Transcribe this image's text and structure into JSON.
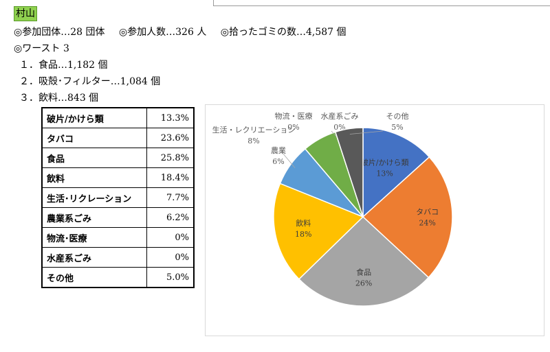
{
  "region": "村山",
  "summary": {
    "groups": "◎参加団体…28 団体",
    "participants": "◎参加人数…326 人",
    "trash": "◎拾ったゴミの数…4,587 個"
  },
  "worst_heading": "◎ワースト 3",
  "worst": [
    {
      "label": "１．食品…1,182 個"
    },
    {
      "label": "２．吸殻･フィルター…1,084 個"
    },
    {
      "label": "３．飲料…843 個"
    }
  ],
  "table": [
    {
      "category": "破片/かけら類",
      "percent": "13.3%"
    },
    {
      "category": "タバコ",
      "percent": "23.6%"
    },
    {
      "category": "食品",
      "percent": "25.8%"
    },
    {
      "category": "飲料",
      "percent": "18.4%"
    },
    {
      "category": "生活･リクレーション",
      "percent": "7.7%"
    },
    {
      "category": "農業系ごみ",
      "percent": "6.2%"
    },
    {
      "category": "物流･医療",
      "percent": "0%"
    },
    {
      "category": "水産系ごみ",
      "percent": "0%"
    },
    {
      "category": "その他",
      "percent": "5.0%"
    }
  ],
  "chart_data": {
    "type": "pie",
    "slices": [
      {
        "name": "破片/かけら類",
        "value": 13.3,
        "label": "13%",
        "color": "#4472c4"
      },
      {
        "name": "タバコ",
        "value": 23.6,
        "label": "24%",
        "color": "#ed7d31"
      },
      {
        "name": "食品",
        "value": 25.8,
        "label": "26%",
        "color": "#a5a5a5"
      },
      {
        "name": "飲料",
        "value": 18.4,
        "label": "18%",
        "color": "#ffc000"
      },
      {
        "name": "生活・レクリエーション",
        "value": 7.7,
        "label": "8%",
        "color": "#5b9bd5"
      },
      {
        "name": "農業",
        "value": 6.2,
        "label": "6%",
        "color": "#70ad47"
      },
      {
        "name": "物流・医療",
        "value": 0,
        "label": "0%",
        "color": "#264478"
      },
      {
        "name": "水産系ごみ",
        "value": 0,
        "label": "0%",
        "color": "#9e480e"
      },
      {
        "name": "その他",
        "value": 5.0,
        "label": "5%",
        "color": "#595959"
      }
    ]
  }
}
